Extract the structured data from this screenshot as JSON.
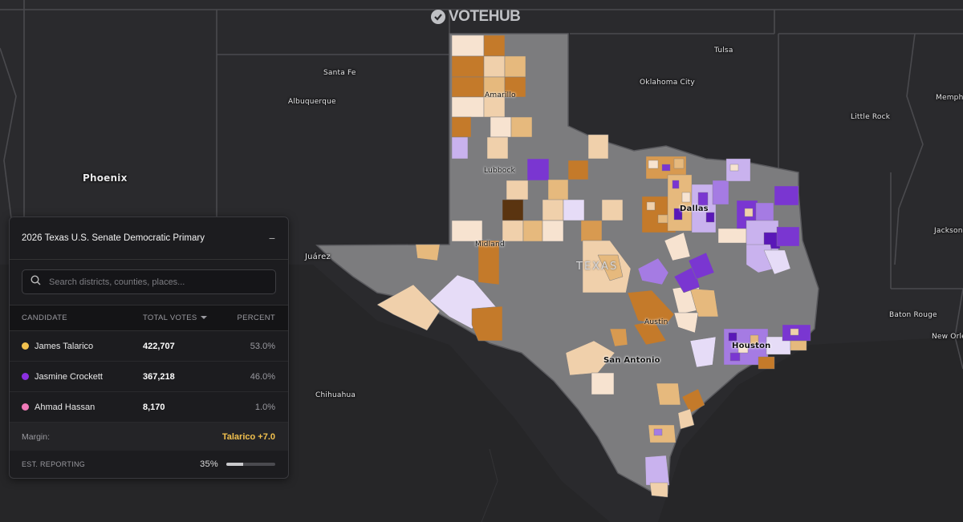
{
  "logo": {
    "text": "VOTEHUB"
  },
  "map": {
    "cities": {
      "phoenix": "Phoenix",
      "albuquerque": "Albuquerque",
      "santa_fe": "Santa Fe",
      "juarez": "Juárez",
      "chihuahua": "Chihuahua",
      "tulsa": "Tulsa",
      "oklahoma_city": "Oklahoma City",
      "little_rock": "Little Rock",
      "memphis": "Memph",
      "jackson": "Jackson",
      "baton_rouge": "Baton Rouge",
      "new_orleans": "New Orlea",
      "amarillo": "Amarillo",
      "lubbock": "Lubbock",
      "midland": "Midland",
      "dallas": "Dallas",
      "austin": "Austin",
      "san_antonio": "San Antonio",
      "houston": "Houston",
      "texas": "TEXAS"
    },
    "colors": {
      "talarico": [
        "#f7e3d0",
        "#f0d0ab",
        "#e6b97d",
        "#d89a50",
        "#c47a2a",
        "#5a3410"
      ],
      "crockett": [
        "#e6dcf7",
        "#c9b2ee",
        "#a57be3",
        "#7a36d1",
        "#5a17b8"
      ],
      "state_fill": "#7c7c7e",
      "background": "#2a2a2d"
    }
  },
  "panel": {
    "title": "2026 Texas U.S. Senate Democratic Primary",
    "minimize_icon": "minus-icon",
    "search_placeholder": "Search districts, counties, places...",
    "headers": {
      "candidate": "CANDIDATE",
      "total_votes": "TOTAL VOTES",
      "percent": "PERCENT"
    },
    "candidates": [
      {
        "name": "James Talarico",
        "votes": "422,707",
        "percent": "53.0%",
        "color": "#f2c14e"
      },
      {
        "name": "Jasmine Crockett",
        "votes": "367,218",
        "percent": "46.0%",
        "color": "#8b2fe0"
      },
      {
        "name": "Ahmad Hassan",
        "votes": "8,170",
        "percent": "1.0%",
        "color": "#f07ab8"
      }
    ],
    "margin_label": "Margin:",
    "margin_value": "Talarico +7.0",
    "reporting_label": "EST. REPORTING",
    "reporting_value": "35%",
    "reporting_fraction": 0.35
  }
}
